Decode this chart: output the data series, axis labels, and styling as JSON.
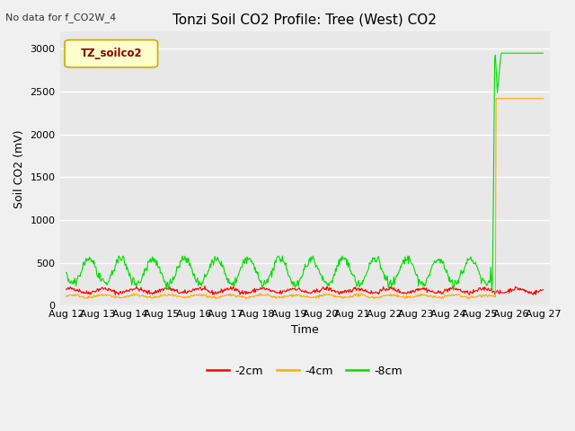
{
  "title": "Tonzi Soil CO2 Profile: Tree (West) CO2",
  "top_left_text": "No data for f_CO2W_4",
  "ylabel": "Soil CO2 (mV)",
  "xlabel": "Time",
  "legend_label": "TZ_soilco2",
  "series_labels": [
    "-2cm",
    "-4cm",
    "-8cm"
  ],
  "series_colors": [
    "#ff0000",
    "#ffaa00",
    "#00dd00"
  ],
  "ylim": [
    0,
    3200
  ],
  "yticks": [
    0,
    500,
    1000,
    1500,
    2000,
    2500,
    3000
  ],
  "background_color": "#e8e8e8",
  "plot_bg_light": "#ebebeb",
  "plot_bg_dark": "#d8d8d8",
  "grid_color": "#ffffff",
  "title_fontsize": 11,
  "axis_fontsize": 9,
  "tick_fontsize": 8,
  "fig_width": 6.4,
  "fig_height": 4.8,
  "fig_dpi": 100
}
